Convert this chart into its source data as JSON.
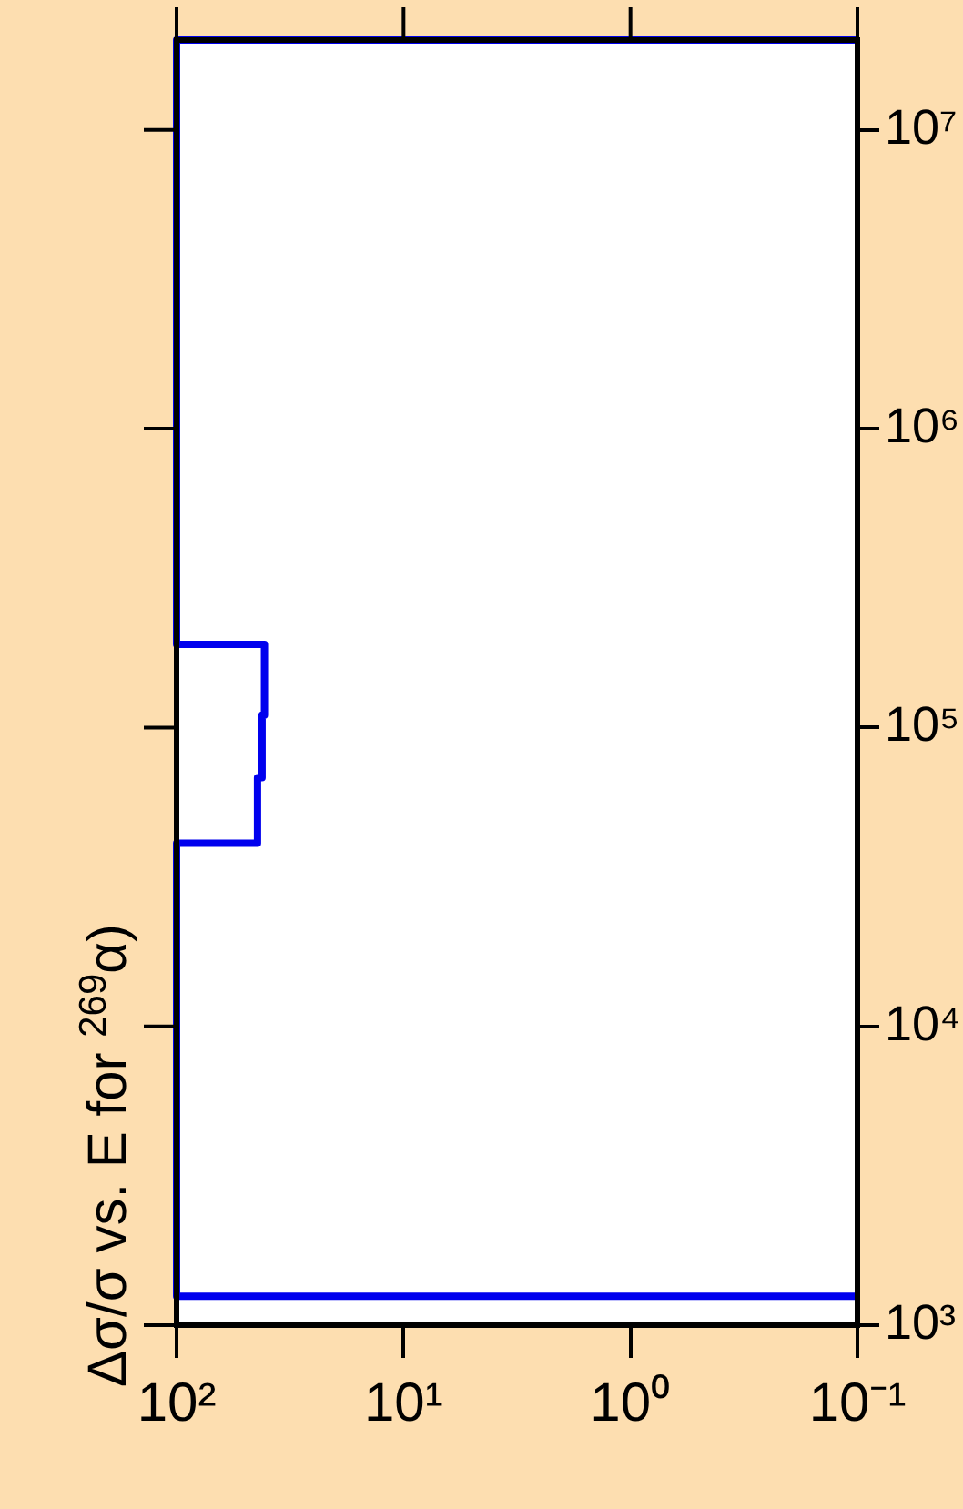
{
  "chart_data": {
    "type": "step",
    "title": "Δσ/σ vs. E for $^{269}$α)",
    "orientation": "horizontal",
    "x": [
      1250,
      1250,
      41000,
      68000,
      110000,
      190000,
      20000000,
      20000000
    ],
    "series": [
      {
        "color": "#0000ee",
        "values": [
          0.1,
          100,
          44,
          42,
          41,
          100,
          100,
          0.1
        ]
      }
    ],
    "log": "xy",
    "ylim": [
      1000,
      20000000
    ],
    "xlim": [
      100,
      0.1
    ],
    "yticks": [
      {
        "value": 1000,
        "label": "10³"
      },
      {
        "value": 10000,
        "label": "10⁴"
      },
      {
        "value": 100000,
        "label": "10⁵"
      },
      {
        "value": 1000000,
        "label": "10⁶"
      },
      {
        "value": 10000000,
        "label": "10⁷"
      }
    ],
    "xticks": [
      {
        "value": 100,
        "label": "10²"
      },
      {
        "value": 10,
        "label": "10¹"
      },
      {
        "value": 1,
        "label": "10⁰"
      },
      {
        "value": 0.1,
        "label": "10⁻¹"
      }
    ],
    "grid": false,
    "legend": false
  }
}
